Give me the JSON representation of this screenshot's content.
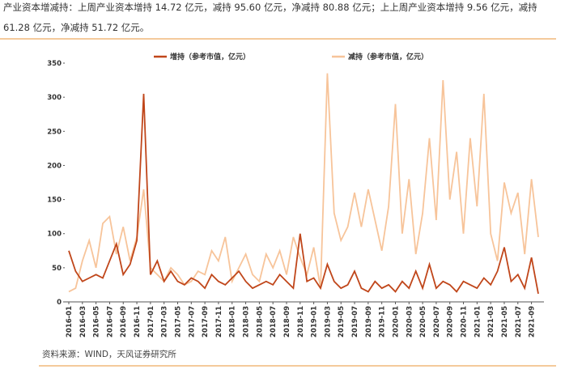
{
  "header": {
    "line1": "产业资本增减持：上周产业资本增持 14.72 亿元，减持 95.60 亿元，净减持 80.88 亿元；上上周产业资本增持 9.56 亿元，减持",
    "line2": "61.28 亿元，净减持 51.72 亿元。"
  },
  "source": "资料来源：WIND，天风证券研究所",
  "chart_data": {
    "type": "line",
    "categories": [
      "2016-01",
      null,
      "2016-03",
      null,
      "2016-05",
      null,
      "2016-07",
      null,
      "2016-09",
      null,
      "2016-11",
      null,
      "2017-01",
      null,
      "2017-03",
      null,
      "2017-05",
      null,
      "2017-07",
      null,
      "2017-09",
      null,
      "2017-11",
      null,
      "2018-01",
      null,
      "2018-03",
      null,
      "2018-05",
      null,
      "2018-07",
      null,
      "2018-09",
      null,
      "2018-11",
      null,
      "2019-01",
      null,
      "2019-03",
      null,
      "2019-05",
      null,
      "2019-07",
      null,
      "2019-09",
      null,
      "2019-11",
      null,
      "2020-01",
      null,
      "2020-03",
      null,
      "2020-05",
      null,
      "2020-07",
      null,
      "2020-09",
      null,
      "2020-11",
      null,
      "2021-01",
      null,
      "2021-03",
      null,
      "2021-05",
      null,
      "2021-07",
      null,
      "2021-09",
      null
    ],
    "series": [
      {
        "name": "增持（参考市值，亿元）",
        "color": "#c0461a",
        "values": [
          75,
          45,
          30,
          35,
          40,
          35,
          60,
          85,
          40,
          55,
          90,
          305,
          40,
          60,
          30,
          45,
          30,
          25,
          35,
          30,
          20,
          40,
          30,
          25,
          35,
          45,
          30,
          20,
          25,
          30,
          25,
          40,
          30,
          20,
          100,
          30,
          35,
          20,
          55,
          30,
          20,
          25,
          45,
          20,
          15,
          30,
          20,
          25,
          15,
          30,
          20,
          45,
          20,
          55,
          20,
          30,
          25,
          15,
          30,
          25,
          20,
          35,
          25,
          45,
          80,
          30,
          40,
          20,
          65,
          12
        ]
      },
      {
        "name": "减持（参考市值，亿元）",
        "color": "#f7c49a",
        "values": [
          15,
          20,
          60,
          90,
          50,
          115,
          125,
          70,
          110,
          60,
          95,
          165,
          50,
          40,
          30,
          50,
          40,
          25,
          30,
          45,
          40,
          75,
          60,
          95,
          30,
          50,
          70,
          40,
          30,
          70,
          50,
          75,
          40,
          95,
          65,
          40,
          80,
          20,
          335,
          130,
          90,
          110,
          160,
          110,
          165,
          120,
          75,
          140,
          290,
          100,
          180,
          70,
          130,
          240,
          120,
          325,
          150,
          220,
          100,
          240,
          140,
          305,
          100,
          60,
          175,
          130,
          160,
          70,
          180,
          95
        ]
      }
    ],
    "ylim": [
      0,
      350
    ],
    "yticks": [
      0,
      50,
      100,
      150,
      200,
      250,
      300,
      350
    ]
  }
}
